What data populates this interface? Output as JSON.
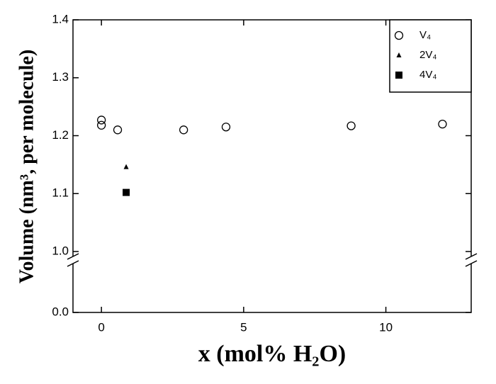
{
  "chart_data": {
    "type": "scatter",
    "x_label": "x (mol% H₂O)",
    "y_label": "Volume (nm³, per molecule)",
    "xlim": [
      -1,
      13
    ],
    "xticks": [
      0,
      5,
      10
    ],
    "ylim": [
      0,
      1.4
    ],
    "y_axis_break": [
      0,
      1
    ],
    "yticks": [
      {
        "value": 0,
        "label": "0.0"
      },
      {
        "value": 1,
        "label": "1.0"
      },
      {
        "value": 1.1,
        "label": "1.1"
      },
      {
        "value": 1.2,
        "label": "1.2"
      },
      {
        "value": 1.3,
        "label": "1.3"
      },
      {
        "value": 1.4,
        "label": "1.4"
      }
    ],
    "legend": "upper right",
    "series": [
      {
        "name": "V₄",
        "marker": "circle",
        "color": "#000000",
        "x": [
          0,
          0,
          0.57,
          2.89,
          4.38,
          8.78,
          11.99
        ],
        "values": [
          1.227,
          1.218,
          1.21,
          1.21,
          1.215,
          1.217,
          1.22
        ]
      },
      {
        "name": "2V₄",
        "marker": "triangle",
        "color": "#000000",
        "x": [
          0.87
        ],
        "values": [
          1.146
        ]
      },
      {
        "name": "4V₄",
        "marker": "square",
        "color": "#000000",
        "x": [
          0.87
        ],
        "values": [
          1.102
        ]
      }
    ]
  }
}
